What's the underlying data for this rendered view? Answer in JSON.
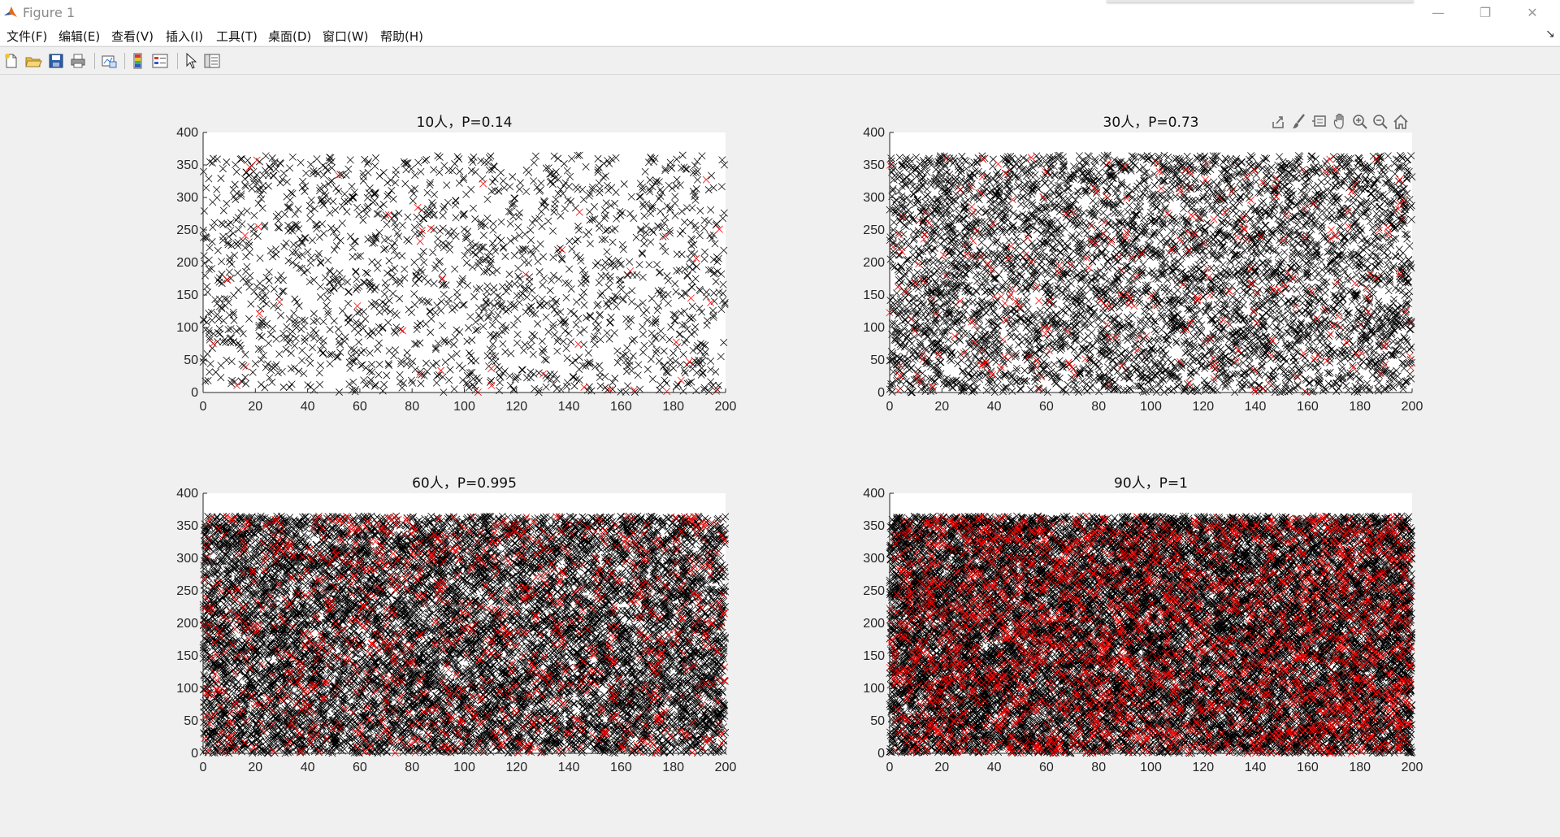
{
  "window": {
    "title": "Figure 1",
    "controls": {
      "minimize": "—",
      "restore": "❐",
      "close": "✕"
    }
  },
  "menu": {
    "items": [
      "文件(F)",
      "编辑(E)",
      "查看(V)",
      "插入(I)",
      "工具(T)",
      "桌面(D)",
      "窗口(W)",
      "帮助(H)"
    ],
    "overflow": "↘"
  },
  "toolbar": {
    "icons": [
      "new-figure-icon",
      "open-file-icon",
      "save-icon",
      "print-icon",
      "link-plot-icon",
      "insert-colorbar-icon",
      "insert-legend-icon",
      "edit-plot-icon",
      "property-inspector-icon"
    ]
  },
  "axes_toolbar": {
    "icons": [
      "export-icon",
      "brush-icon",
      "data-tips-icon",
      "pan-icon",
      "zoom-in-icon",
      "zoom-out-icon",
      "home-icon"
    ]
  },
  "colors": {
    "normal_marker": "#000000",
    "highlight_marker": "#ff0000",
    "plot_bg": "#ffffff",
    "figure_bg": "#f0f0f0"
  },
  "chart_data": [
    {
      "type": "scatter",
      "title": "10人，P=0.14",
      "marker": "x",
      "xlim": [
        0,
        200
      ],
      "ylim": [
        0,
        400
      ],
      "xticks": [
        0,
        20,
        40,
        60,
        80,
        100,
        120,
        140,
        160,
        180,
        200
      ],
      "yticks": [
        0,
        50,
        100,
        150,
        200,
        250,
        300,
        350,
        400
      ],
      "points": {
        "count_black": 1800,
        "count_red": 45,
        "x_range": [
          0,
          200
        ],
        "y_range": [
          0,
          365
        ]
      }
    },
    {
      "type": "scatter",
      "title": "30人，P=0.73",
      "marker": "x",
      "xlim": [
        0,
        200
      ],
      "ylim": [
        0,
        400
      ],
      "xticks": [
        0,
        20,
        40,
        60,
        80,
        100,
        120,
        140,
        160,
        180,
        200
      ],
      "yticks": [
        0,
        50,
        100,
        150,
        200,
        250,
        300,
        350,
        400
      ],
      "points": {
        "count_black": 5300,
        "count_red": 280,
        "x_range": [
          0,
          200
        ],
        "y_range": [
          0,
          365
        ]
      }
    },
    {
      "type": "scatter",
      "title": "60人，P=0.995",
      "marker": "x",
      "xlim": [
        0,
        200
      ],
      "ylim": [
        0,
        400
      ],
      "xticks": [
        0,
        20,
        40,
        60,
        80,
        100,
        120,
        140,
        160,
        180,
        200
      ],
      "yticks": [
        0,
        50,
        100,
        150,
        200,
        250,
        300,
        350,
        400
      ],
      "points": {
        "count_black": 10500,
        "count_red": 1100,
        "x_range": [
          0,
          200
        ],
        "y_range": [
          0,
          365
        ]
      }
    },
    {
      "type": "scatter",
      "title": "90人，P=1",
      "marker": "x",
      "xlim": [
        0,
        200
      ],
      "ylim": [
        0,
        400
      ],
      "xticks": [
        0,
        20,
        40,
        60,
        80,
        100,
        120,
        140,
        160,
        180,
        200
      ],
      "yticks": [
        0,
        50,
        100,
        150,
        200,
        250,
        300,
        350,
        400
      ],
      "points": {
        "count_black": 15000,
        "count_red": 2600,
        "x_range": [
          0,
          200
        ],
        "y_range": [
          0,
          365
        ]
      }
    }
  ]
}
